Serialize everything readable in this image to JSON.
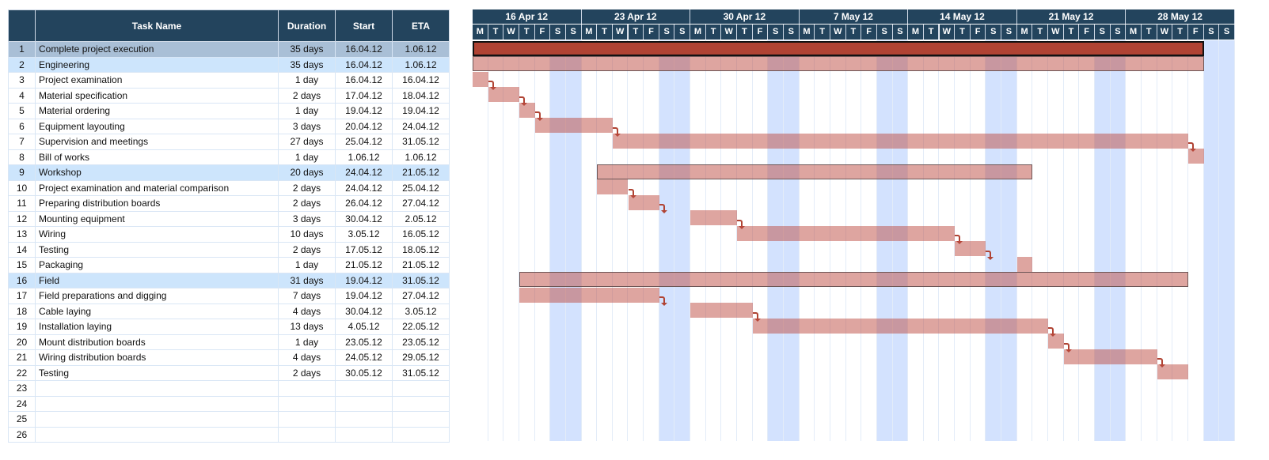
{
  "columns": {
    "num": "",
    "task": "Task Name",
    "duration": "Duration",
    "start": "Start",
    "eta": "ETA"
  },
  "weeks": [
    "16 Apr 12",
    "23 Apr 12",
    "30 Apr 12",
    "7 May 12",
    "14 May 12",
    "21 May 12",
    "28 May 12"
  ],
  "day_letters": [
    "M",
    "T",
    "W",
    "T",
    "F",
    "S",
    "S"
  ],
  "colors": {
    "header": "#23445d",
    "bar": "#d79e99",
    "main_bar": "#b04333",
    "weekend": "#d3e2fe",
    "summary_row": "#cde5fc",
    "selected_row": "#a9bfd6"
  },
  "tasks": [
    {
      "n": "1",
      "name": "Complete project execution",
      "duration": "35 days",
      "start": "16.04.12",
      "eta": "1.06.12",
      "type": "main"
    },
    {
      "n": "2",
      "name": "Engineering",
      "duration": "35 days",
      "start": "16.04.12",
      "eta": "1.06.12",
      "type": "sum"
    },
    {
      "n": "3",
      "name": "Project examination",
      "duration": "1 day",
      "start": "16.04.12",
      "eta": "16.04.12",
      "arrow": true
    },
    {
      "n": "4",
      "name": "Material specification",
      "duration": "2 days",
      "start": "17.04.12",
      "eta": "18.04.12",
      "arrow": true
    },
    {
      "n": "5",
      "name": "Material ordering",
      "duration": "1 day",
      "start": "19.04.12",
      "eta": "19.04.12",
      "arrow": true
    },
    {
      "n": "6",
      "name": "Equipment layouting",
      "duration": "3 days",
      "start": "20.04.12",
      "eta": "24.04.12",
      "arrow": true
    },
    {
      "n": "7",
      "name": "Supervision and meetings",
      "duration": "27 days",
      "start": "25.04.12",
      "eta": "31.05.12",
      "arrow": true
    },
    {
      "n": "8",
      "name": "Bill of works",
      "duration": "1 day",
      "start": "1.06.12",
      "eta": "1.06.12"
    },
    {
      "n": "9",
      "name": "Workshop",
      "duration": "20 days",
      "start": "24.04.12",
      "eta": "21.05.12",
      "type": "sum"
    },
    {
      "n": "10",
      "name": "Project examination and material comparison",
      "duration": "2 days",
      "start": "24.04.12",
      "eta": "25.04.12",
      "arrow": true
    },
    {
      "n": "11",
      "name": "Preparing distribution boards",
      "duration": "2 days",
      "start": "26.04.12",
      "eta": "27.04.12",
      "arrow": true
    },
    {
      "n": "12",
      "name": "Mounting equipment",
      "duration": "3 days",
      "start": "30.04.12",
      "eta": "2.05.12",
      "arrow": true
    },
    {
      "n": "13",
      "name": "Wiring",
      "duration": "10 days",
      "start": "3.05.12",
      "eta": "16.05.12",
      "arrow": true
    },
    {
      "n": "14",
      "name": "Testing",
      "duration": "2 days",
      "start": "17.05.12",
      "eta": "18.05.12",
      "arrow": true
    },
    {
      "n": "15",
      "name": "Packaging",
      "duration": "1 day",
      "start": "21.05.12",
      "eta": "21.05.12"
    },
    {
      "n": "16",
      "name": "Field",
      "duration": "31 days",
      "start": "19.04.12",
      "eta": "31.05.12",
      "type": "sum"
    },
    {
      "n": "17",
      "name": "Field preparations and digging",
      "duration": "7 days",
      "start": "19.04.12",
      "eta": "27.04.12",
      "arrow": true
    },
    {
      "n": "18",
      "name": "Cable laying",
      "duration": "4 days",
      "start": "30.04.12",
      "eta": "3.05.12",
      "arrow": true
    },
    {
      "n": "19",
      "name": "Installation laying",
      "duration": "13 days",
      "start": "4.05.12",
      "eta": "22.05.12",
      "arrow": true
    },
    {
      "n": "20",
      "name": "Mount distribution boards",
      "duration": "1 day",
      "start": "23.05.12",
      "eta": "23.05.12",
      "arrow": true
    },
    {
      "n": "21",
      "name": "Wiring distribution boards",
      "duration": "4 days",
      "start": "24.05.12",
      "eta": "29.05.12",
      "arrow": true
    },
    {
      "n": "22",
      "name": "Testing",
      "duration": "2 days",
      "start": "30.05.12",
      "eta": "31.05.12"
    }
  ],
  "empty_rows": [
    "23",
    "24",
    "25",
    "26"
  ]
}
